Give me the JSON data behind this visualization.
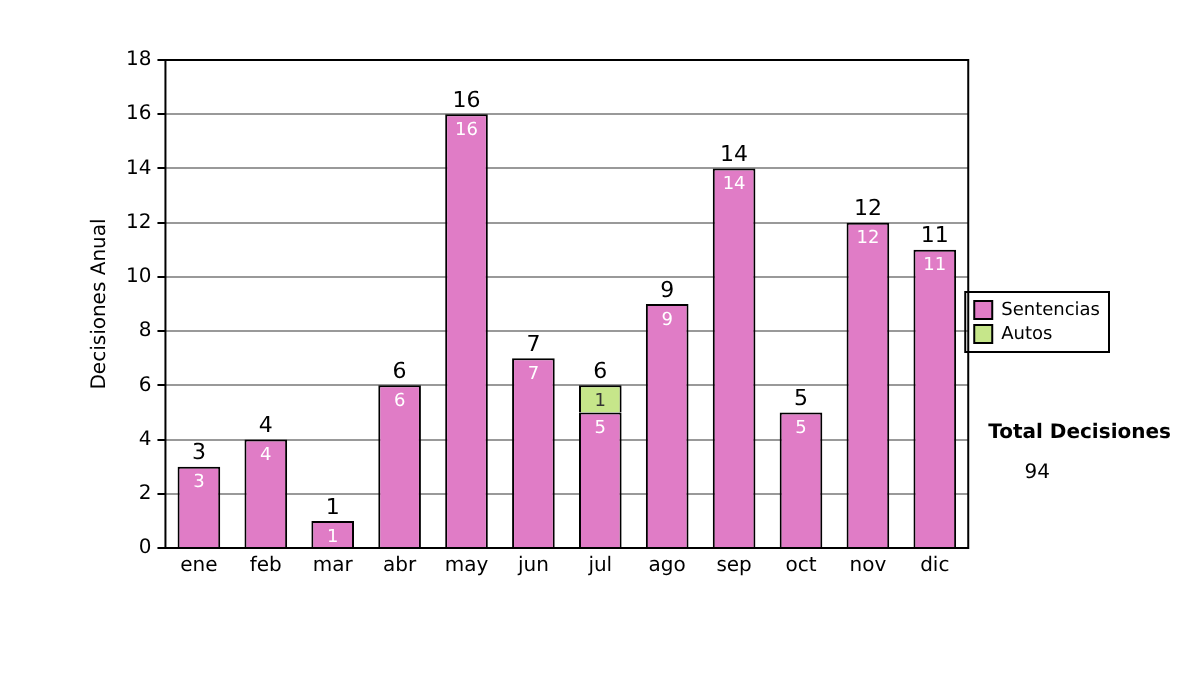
{
  "chart_data": {
    "type": "bar",
    "stacked": true,
    "ylabel": "Decisiones Anual",
    "categories": [
      "ene",
      "feb",
      "mar",
      "abr",
      "may",
      "jun",
      "jul",
      "ago",
      "sep",
      "oct",
      "nov",
      "dic"
    ],
    "series": [
      {
        "name": "Sentencias",
        "color": "#e07cc6",
        "values": [
          3,
          4,
          1,
          6,
          16,
          7,
          5,
          9,
          14,
          5,
          12,
          11
        ]
      },
      {
        "name": "Autos",
        "color": "#c6e68a",
        "values": [
          null,
          null,
          null,
          null,
          null,
          null,
          1,
          null,
          null,
          null,
          null,
          null
        ]
      }
    ],
    "ylim": [
      0,
      18
    ],
    "yticks": [
      0,
      2,
      4,
      6,
      8,
      10,
      12,
      14,
      16,
      18
    ],
    "grid": "y",
    "legend": "right",
    "data_labels": true,
    "totals": [
      "3",
      "4",
      "1",
      "6",
      "16",
      "7",
      "6",
      "9",
      "14",
      "5",
      "12",
      "11"
    ],
    "annotations": [
      "Total Decisiones",
      "94"
    ]
  }
}
